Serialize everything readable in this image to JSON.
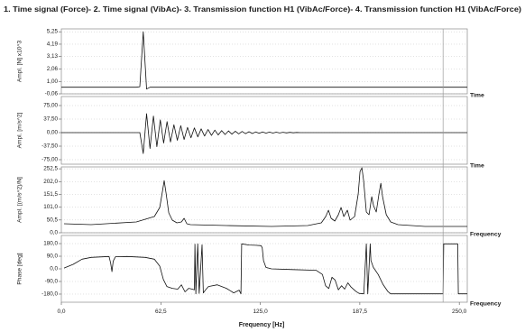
{
  "title": "1. Time signal (Force)- 2. Time signal (VibAc)- 3. Transmission function H1 (VibAc/Force)- 4. Transmission function H1 (VibAc/Force)",
  "x_axis": {
    "label": "Frequency [Hz]",
    "xlim": [
      0,
      255
    ],
    "ticks": [
      {
        "v": 0,
        "label": "0,0"
      },
      {
        "v": 62.5,
        "label": "62,5"
      },
      {
        "v": 125,
        "label": "125,0"
      },
      {
        "v": 187.5,
        "label": "187,5"
      },
      {
        "v": 250,
        "label": "250,0"
      }
    ],
    "cursor": 239.8
  },
  "chart_data": [
    {
      "type": "line",
      "ylabel": "Ampl. [N] x10^3",
      "side_label": "Time",
      "ylim": [
        -0.06,
        5.5
      ],
      "yticks": [
        {
          "v": 5.25,
          "label": "5,25"
        },
        {
          "v": 4.19,
          "label": "4,19"
        },
        {
          "v": 3.13,
          "label": "3,13"
        },
        {
          "v": 2.06,
          "label": "2,06"
        },
        {
          "v": 1.0,
          "label": "1,00"
        },
        {
          "v": -0.06,
          "label": "-0,06"
        }
      ],
      "values": [
        0.5,
        0.5,
        0.5,
        0.5,
        0.5,
        0.5,
        0.5,
        0.5,
        0.5,
        0.5,
        0.5,
        0.5,
        0.5,
        0.5,
        0.5,
        0.5,
        0.5,
        0.5,
        0.5,
        0.5,
        0.5,
        0.5,
        0.5,
        0.55,
        5.25,
        0.35,
        0.5,
        0.5,
        0.5,
        0.5,
        0.5,
        0.5,
        0.5,
        0.5,
        0.5,
        0.5,
        0.5,
        0.5,
        0.5,
        0.5,
        0.5,
        0.5,
        0.5,
        0.5,
        0.5,
        0.5,
        0.5,
        0.5,
        0.5,
        0.5,
        0.5,
        0.5,
        0.5,
        0.5,
        0.5,
        0.5,
        0.5,
        0.5,
        0.5,
        0.5,
        0.5,
        0.5,
        0.5,
        0.5,
        0.5,
        0.5,
        0.5,
        0.5,
        0.5,
        0.5,
        0.5,
        0.5,
        0.5,
        0.5,
        0.5,
        0.5,
        0.5,
        0.5,
        0.5,
        0.5,
        0.5,
        0.5,
        0.5,
        0.5,
        0.5,
        0.5,
        0.5,
        0.5,
        0.5,
        0.5,
        0.5,
        0.5,
        0.5,
        0.5,
        0.5,
        0.5,
        0.5,
        0.5,
        0.5,
        0.5,
        0.5,
        0.5,
        0.5,
        0.5,
        0.5,
        0.5,
        0.5,
        0.5,
        0.5,
        0.5,
        0.5,
        0.5,
        0.5,
        0.5,
        0.5,
        0.5,
        0.5,
        0.5,
        0.5,
        0.5
      ]
    },
    {
      "type": "line",
      "ylabel": "Ampl. [m/s^2]",
      "side_label": "Time",
      "ylim": [
        -87.5,
        100
      ],
      "yticks": [
        {
          "v": 75,
          "label": "75,00"
        },
        {
          "v": 37.5,
          "label": "37,50"
        },
        {
          "v": 0,
          "label": "0,00"
        },
        {
          "v": -37.5,
          "label": "-37,50"
        },
        {
          "v": -75,
          "label": "-75,00"
        }
      ],
      "values": [
        0,
        0,
        0,
        0,
        0,
        0,
        0,
        0,
        0,
        0,
        0,
        0,
        0,
        0,
        0,
        0,
        0,
        0,
        0,
        0,
        0,
        0,
        0,
        0,
        -58,
        52.5,
        -44.0,
        46.1,
        -38.9,
        35.2,
        -29.0,
        30.5,
        -26.1,
        21.8,
        -21.3,
        19.3,
        -19.0,
        14.6,
        -14.3,
        12.9,
        -11.7,
        10.6,
        -9.6,
        8.7,
        -7.8,
        7.1,
        -6.4,
        5.8,
        -5.2,
        4.8,
        -4.3,
        3.9,
        -3.5,
        3.2,
        -2.9,
        2.6,
        -2.4,
        2.1,
        -1.9,
        1.7,
        -1.6,
        1.4,
        -1.3,
        1.2,
        -1.1,
        0.9,
        -0.8,
        0.7,
        -0.6,
        0.5,
        0,
        0,
        0,
        0,
        0,
        0,
        0,
        0,
        0,
        0,
        0,
        0,
        0,
        0,
        0,
        0,
        0,
        0,
        0,
        0,
        0,
        0,
        0,
        0,
        0,
        0,
        0,
        0,
        0,
        0,
        0,
        0,
        0,
        0,
        0,
        0,
        0,
        0,
        0,
        0,
        0,
        0,
        0,
        0,
        0,
        0,
        0,
        0,
        0,
        0
      ]
    },
    {
      "type": "line",
      "ylabel": "Ampl. [(m/s^2)/N]",
      "side_label": "Frequency",
      "ylim": [
        0,
        260
      ],
      "yticks": [
        {
          "v": 252.5,
          "label": "252,5"
        },
        {
          "v": 202.0,
          "label": "202,0"
        },
        {
          "v": 151.5,
          "label": "151,5"
        },
        {
          "v": 101.0,
          "label": "101,0"
        },
        {
          "v": 50.5,
          "label": "50,5"
        },
        {
          "v": 0,
          "label": "0,0"
        }
      ],
      "points": [
        [
          1.7,
          35.6
        ],
        [
          18.7,
          32.0
        ],
        [
          47.1,
          42.7
        ],
        [
          58.4,
          64.1
        ],
        [
          61.8,
          99.6
        ],
        [
          63.5,
          163.7
        ],
        [
          64.6,
          206.0
        ],
        [
          65.8,
          156.6
        ],
        [
          67.5,
          78.3
        ],
        [
          69.7,
          49.8
        ],
        [
          72.6,
          39.1
        ],
        [
          75.4,
          42.7
        ],
        [
          77.1,
          57.0
        ],
        [
          78.8,
          35.6
        ],
        [
          81.1,
          32.0
        ],
        [
          103.7,
          28.5
        ],
        [
          132.1,
          24.9
        ],
        [
          154.8,
          28.5
        ],
        [
          163.3,
          39.1
        ],
        [
          166.1,
          64.1
        ],
        [
          167.8,
          89.0
        ],
        [
          169.5,
          56.9
        ],
        [
          171.8,
          46.3
        ],
        [
          174.0,
          71.2
        ],
        [
          175.7,
          99.6
        ],
        [
          177.4,
          64.1
        ],
        [
          179.7,
          89.0
        ],
        [
          181.4,
          49.8
        ],
        [
          184.2,
          64.1
        ],
        [
          186.5,
          153.0
        ],
        [
          187.6,
          242.0
        ],
        [
          188.8,
          256.3
        ],
        [
          189.9,
          206.0
        ],
        [
          191.6,
          81.9
        ],
        [
          193.3,
          71.2
        ],
        [
          195.0,
          142.4
        ],
        [
          196.1,
          106.8
        ],
        [
          197.8,
          81.9
        ],
        [
          199.5,
          153.0
        ],
        [
          200.7,
          195.7
        ],
        [
          201.8,
          142.4
        ],
        [
          204.1,
          71.2
        ],
        [
          206.9,
          42.7
        ],
        [
          211.5,
          32.0
        ],
        [
          228.5,
          24.9
        ],
        [
          255.0,
          24.9
        ]
      ]
    },
    {
      "type": "line",
      "ylabel": "Phase [deg]",
      "side_label": "Frequency",
      "ylim": [
        -238,
        238
      ],
      "yticks": [
        {
          "v": 180,
          "label": "180,0"
        },
        {
          "v": 90,
          "label": "90,0"
        },
        {
          "v": 0,
          "label": "0,0"
        },
        {
          "v": -90,
          "label": "-90,0"
        },
        {
          "v": -180,
          "label": "-180,0"
        }
      ],
      "points": [
        [
          1.7,
          6
        ],
        [
          7.4,
          32
        ],
        [
          13.0,
          69
        ],
        [
          18.7,
          82
        ],
        [
          30.0,
          88
        ],
        [
          31.0,
          40
        ],
        [
          31.8,
          -20
        ],
        [
          32.6,
          55
        ],
        [
          34.0,
          86
        ],
        [
          41.4,
          88
        ],
        [
          52.7,
          82
        ],
        [
          58.4,
          69
        ],
        [
          61.8,
          19
        ],
        [
          64.1,
          -76
        ],
        [
          66.3,
          -126
        ],
        [
          69.7,
          -139
        ],
        [
          73.1,
          -145
        ],
        [
          75.4,
          -114
        ],
        [
          77.7,
          -164
        ],
        [
          80.0,
          -139
        ],
        [
          82.2,
          -145
        ],
        [
          83.6,
          -150
        ],
        [
          83.9,
          176
        ],
        [
          84.5,
          -178
        ],
        [
          85.7,
          178
        ],
        [
          86.6,
          -175
        ],
        [
          88.4,
          172
        ],
        [
          89.2,
          -172
        ],
        [
          90.6,
          -150
        ],
        [
          92.4,
          -126
        ],
        [
          98.0,
          -114
        ],
        [
          103.7,
          -139
        ],
        [
          108.3,
          -171
        ],
        [
          111.7,
          -152
        ],
        [
          112.8,
          -178
        ],
        [
          113.3,
          178
        ],
        [
          118.0,
          170
        ],
        [
          122.0,
          168
        ],
        [
          125.5,
          165
        ],
        [
          126.2,
          150
        ],
        [
          127.0,
          60
        ],
        [
          128.5,
          10
        ],
        [
          132.0,
          0
        ],
        [
          145.0,
          -5
        ],
        [
          160.0,
          -10
        ],
        [
          164.0,
          -40
        ],
        [
          166.0,
          -120
        ],
        [
          168.0,
          -140
        ],
        [
          170.0,
          -60
        ],
        [
          172.0,
          -80
        ],
        [
          174.0,
          -150
        ],
        [
          176.0,
          -120
        ],
        [
          178.0,
          -145
        ],
        [
          180.0,
          -100
        ],
        [
          182.0,
          -130
        ],
        [
          185.0,
          -160
        ],
        [
          187.0,
          -175
        ],
        [
          190.0,
          -178
        ],
        [
          191.6,
          178
        ],
        [
          192.5,
          -178
        ],
        [
          194.0,
          178
        ],
        [
          194.5,
          60
        ],
        [
          196.0,
          10
        ],
        [
          199.0,
          -40
        ],
        [
          202.0,
          -110
        ],
        [
          205.0,
          -160
        ],
        [
          206.9,
          -178
        ],
        [
          239.8,
          -178
        ],
        [
          240.2,
          178
        ],
        [
          249.0,
          178
        ],
        [
          249.4,
          -178
        ],
        [
          255.0,
          -178
        ]
      ]
    }
  ]
}
